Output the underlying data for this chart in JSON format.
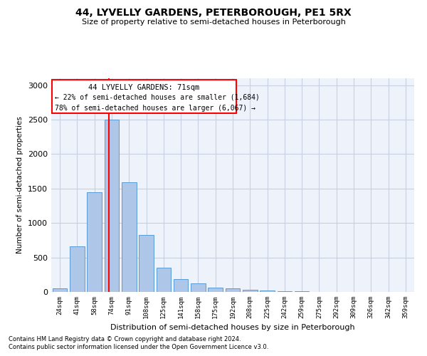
{
  "title1": "44, LYVELLY GARDENS, PETERBOROUGH, PE1 5RX",
  "title2": "Size of property relative to semi-detached houses in Peterborough",
  "xlabel": "Distribution of semi-detached houses by size in Peterborough",
  "ylabel": "Number of semi-detached properties",
  "categories": [
    "24sqm",
    "41sqm",
    "58sqm",
    "74sqm",
    "91sqm",
    "108sqm",
    "125sqm",
    "141sqm",
    "158sqm",
    "175sqm",
    "192sqm",
    "208sqm",
    "225sqm",
    "242sqm",
    "259sqm",
    "275sqm",
    "292sqm",
    "309sqm",
    "326sqm",
    "342sqm",
    "359sqm"
  ],
  "values": [
    50,
    660,
    1450,
    2500,
    1590,
    825,
    350,
    185,
    120,
    60,
    55,
    35,
    20,
    15,
    10,
    5,
    5,
    5,
    5,
    5,
    5
  ],
  "bar_color": "#aec6e8",
  "bar_edge_color": "#5b9bd5",
  "grid_color": "#c8d0e0",
  "bg_color": "#eef2fb",
  "annotation_text1": "44 LYVELLY GARDENS: 71sqm",
  "annotation_text2": "← 22% of semi-detached houses are smaller (1,684)",
  "annotation_text3": "78% of semi-detached houses are larger (6,067) →",
  "redline_x": 2.82,
  "ylim": [
    0,
    3100
  ],
  "yticks": [
    0,
    500,
    1000,
    1500,
    2000,
    2500,
    3000
  ],
  "footnote1": "Contains HM Land Registry data © Crown copyright and database right 2024.",
  "footnote2": "Contains public sector information licensed under the Open Government Licence v3.0."
}
